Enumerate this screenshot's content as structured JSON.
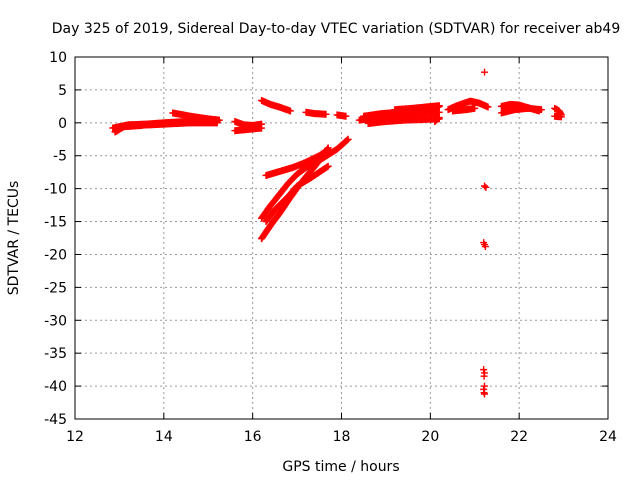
{
  "chart_data": {
    "type": "scatter",
    "title": "Day 325 of 2019, Sidereal Day-to-day VTEC variation (SDTVAR) for receiver ab49",
    "xlabel": "GPS time / hours",
    "ylabel": "SDTVAR / TECUs",
    "xlim": [
      12,
      24
    ],
    "ylim": [
      -45,
      10
    ],
    "xticks": [
      12,
      14,
      16,
      18,
      20,
      22,
      24
    ],
    "yticks": [
      10,
      5,
      0,
      -5,
      -10,
      -15,
      -20,
      -25,
      -30,
      -35,
      -40,
      -45
    ],
    "grid": true,
    "marker": "plus",
    "color": "#ff0000",
    "series": [
      {
        "segments": [
          [
            [
              12.85,
              -0.8
            ],
            [
              13.2,
              -0.3
            ],
            [
              13.6,
              -0.2
            ],
            [
              14.0,
              0.0
            ],
            [
              14.5,
              0.2
            ],
            [
              15.2,
              0.2
            ]
          ],
          [
            [
              13.4,
              -0.4
            ],
            [
              14.0,
              -0.2
            ],
            [
              14.6,
              0.0
            ],
            [
              15.2,
              0.0
            ]
          ],
          [
            [
              12.9,
              -1.4
            ],
            [
              13.1,
              -0.6
            ],
            [
              13.5,
              -0.4
            ]
          ],
          [
            [
              14.2,
              1.5
            ],
            [
              14.6,
              1.0
            ],
            [
              15.0,
              0.6
            ],
            [
              15.25,
              0.4
            ]
          ],
          [
            [
              14.5,
              0.5
            ],
            [
              14.8,
              0.3
            ],
            [
              15.2,
              0.1
            ]
          ],
          [
            [
              15.6,
              0.2
            ],
            [
              15.8,
              -0.3
            ],
            [
              16.0,
              -0.4
            ],
            [
              16.2,
              -0.2
            ]
          ],
          [
            [
              15.6,
              -1.2
            ],
            [
              15.9,
              -1.0
            ],
            [
              16.2,
              -0.8
            ]
          ],
          [
            [
              16.2,
              3.4
            ],
            [
              16.4,
              2.8
            ],
            [
              16.6,
              2.4
            ],
            [
              16.85,
              1.8
            ]
          ],
          [
            [
              17.2,
              1.6
            ],
            [
              17.4,
              1.4
            ],
            [
              17.65,
              1.3
            ]
          ],
          [
            [
              17.9,
              1.2
            ],
            [
              18.1,
              1.0
            ]
          ],
          [
            [
              16.2,
              -14.5
            ],
            [
              16.4,
              -12.6
            ],
            [
              16.6,
              -10.9
            ],
            [
              16.8,
              -9.2
            ],
            [
              17.0,
              -7.8
            ],
            [
              17.2,
              -6.8
            ],
            [
              17.5,
              -5.7
            ],
            [
              17.9,
              -4.0
            ],
            [
              18.15,
              -2.5
            ]
          ],
          [
            [
              16.2,
              -17.6
            ],
            [
              16.4,
              -15.6
            ],
            [
              16.6,
              -13.8
            ],
            [
              16.8,
              -11.8
            ],
            [
              17.0,
              -9.9
            ],
            [
              17.2,
              -8.2
            ],
            [
              17.4,
              -6.6
            ],
            [
              17.6,
              -4.8
            ],
            [
              17.7,
              -3.8
            ]
          ],
          [
            [
              16.3,
              -15.0
            ],
            [
              16.5,
              -13.2
            ],
            [
              16.8,
              -11.2
            ],
            [
              17.0,
              -9.6
            ],
            [
              17.3,
              -8.4
            ],
            [
              17.5,
              -7.5
            ],
            [
              17.7,
              -6.6
            ]
          ],
          [
            [
              16.3,
              -8.0
            ],
            [
              16.6,
              -7.4
            ],
            [
              16.9,
              -6.8
            ],
            [
              17.2,
              -6.0
            ],
            [
              17.5,
              -5.0
            ],
            [
              17.7,
              -4.1
            ]
          ],
          [
            [
              18.4,
              0.4
            ],
            [
              18.8,
              0.8
            ],
            [
              19.2,
              1.0
            ],
            [
              19.6,
              1.2
            ],
            [
              20.0,
              1.5
            ],
            [
              20.2,
              1.6
            ]
          ],
          [
            [
              18.5,
              1.0
            ],
            [
              18.9,
              1.4
            ],
            [
              19.3,
              1.6
            ],
            [
              19.7,
              1.9
            ],
            [
              20.1,
              2.0
            ]
          ],
          [
            [
              18.6,
              -0.1
            ],
            [
              19.0,
              0.2
            ],
            [
              19.4,
              0.4
            ],
            [
              19.8,
              0.5
            ],
            [
              20.2,
              0.6
            ]
          ],
          [
            [
              19.2,
              2.0
            ],
            [
              19.6,
              2.2
            ],
            [
              19.9,
              2.4
            ],
            [
              20.2,
              2.6
            ]
          ],
          [
            [
              20.1,
              0.2
            ],
            [
              20.2,
              0.8
            ]
          ],
          [
            [
              20.05,
              2.0
            ],
            [
              20.2,
              2.5
            ]
          ],
          [
            [
              20.4,
              2.0
            ],
            [
              20.6,
              2.6
            ],
            [
              20.9,
              3.3
            ],
            [
              21.1,
              3.0
            ],
            [
              21.3,
              2.4
            ]
          ],
          [
            [
              20.5,
              1.8
            ],
            [
              20.8,
              2.0
            ],
            [
              21.0,
              2.2
            ]
          ],
          [
            [
              21.6,
              2.5
            ],
            [
              21.8,
              2.8
            ],
            [
              22.0,
              2.7
            ],
            [
              22.2,
              2.3
            ],
            [
              22.45,
              1.8
            ]
          ],
          [
            [
              21.6,
              1.5
            ],
            [
              21.9,
              2.0
            ],
            [
              22.2,
              2.2
            ],
            [
              22.5,
              2.0
            ]
          ],
          [
            [
              22.8,
              2.2
            ],
            [
              22.9,
              1.8
            ],
            [
              22.95,
              1.2
            ]
          ],
          [
            [
              22.8,
              1.0
            ],
            [
              22.95,
              0.9
            ]
          ]
        ],
        "points": [
          [
            21.22,
            7.7
          ],
          [
            21.22,
            -9.6
          ],
          [
            21.25,
            -9.8
          ],
          [
            21.2,
            -18.2
          ],
          [
            21.22,
            -18.5
          ],
          [
            21.24,
            -18.8
          ],
          [
            21.2,
            -37.5
          ],
          [
            21.22,
            -38.0
          ],
          [
            21.21,
            -38.5
          ],
          [
            21.22,
            -40.0
          ],
          [
            21.2,
            -40.5
          ],
          [
            21.21,
            -41.0
          ],
          [
            21.22,
            -41.2
          ]
        ]
      }
    ]
  }
}
